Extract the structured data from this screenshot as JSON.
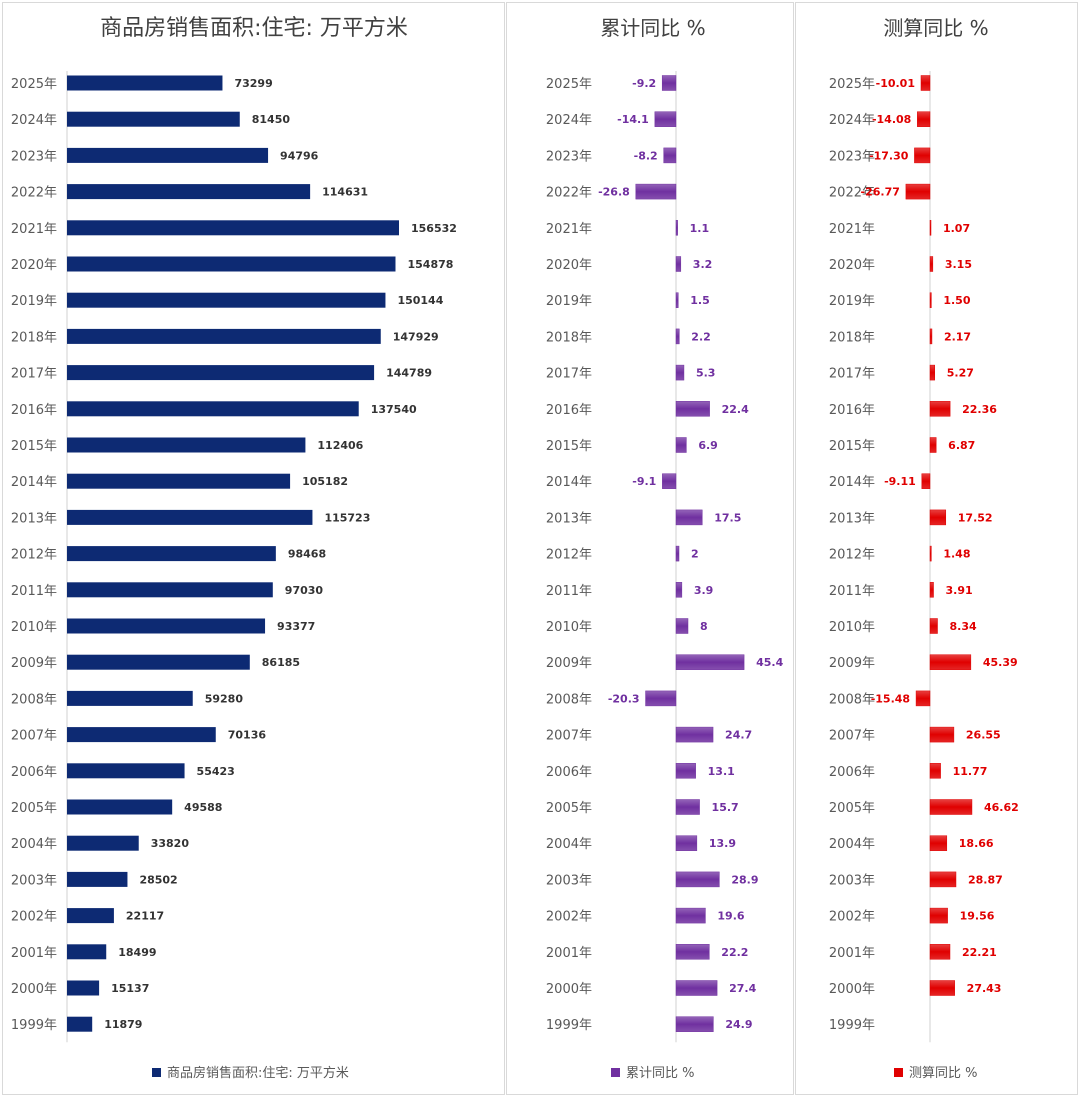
{
  "chart_data": [
    {
      "type": "bar",
      "orientation": "horizontal",
      "title": "商品房销售面积:住宅: 万平方米",
      "categories": [
        "2025年",
        "2024年",
        "2023年",
        "2022年",
        "2021年",
        "2020年",
        "2019年",
        "2018年",
        "2017年",
        "2016年",
        "2015年",
        "2014年",
        "2013年",
        "2012年",
        "2011年",
        "2010年",
        "2009年",
        "2008年",
        "2007年",
        "2006年",
        "2005年",
        "2004年",
        "2003年",
        "2002年",
        "2001年",
        "2000年",
        "1999年"
      ],
      "series": [
        {
          "name": "商品房销售面积:住宅: 万平方米",
          "values": [
            73299,
            81450,
            94796,
            114631,
            156532,
            154878,
            150144,
            147929,
            144789,
            137540,
            112406,
            105182,
            115723,
            98468,
            97030,
            93377,
            86185,
            59280,
            70136,
            55423,
            49588,
            33820,
            28502,
            22117,
            18499,
            15137,
            11879
          ],
          "labels": [
            "73299",
            "81450",
            "94796",
            "114631",
            "156532",
            "154878",
            "150144",
            "147929",
            "144789",
            "137540",
            "112406",
            "105182",
            "115723",
            "98468",
            "97030",
            "93377",
            "86185",
            "59280",
            "70136",
            "55423",
            "49588",
            "33820",
            "28502",
            "22117",
            "18499",
            "15137",
            "11879"
          ]
        }
      ],
      "legend_position": "bottom",
      "grid": false,
      "colors": {
        "bar": "#0d2a73",
        "label": "#333333"
      }
    },
    {
      "type": "bar",
      "orientation": "horizontal",
      "title": "累计同比 %",
      "categories": [
        "2025年",
        "2024年",
        "2023年",
        "2022年",
        "2021年",
        "2020年",
        "2019年",
        "2018年",
        "2017年",
        "2016年",
        "2015年",
        "2014年",
        "2013年",
        "2012年",
        "2011年",
        "2010年",
        "2009年",
        "2008年",
        "2007年",
        "2006年",
        "2005年",
        "2004年",
        "2003年",
        "2002年",
        "2001年",
        "2000年",
        "1999年"
      ],
      "series": [
        {
          "name": "累计同比 %",
          "values": [
            -9.2,
            -14.1,
            -8.2,
            -26.8,
            1.1,
            3.2,
            1.5,
            2.2,
            5.3,
            22.4,
            6.9,
            -9.1,
            17.5,
            2,
            3.9,
            8,
            45.4,
            -20.3,
            24.7,
            13.1,
            15.7,
            13.9,
            28.9,
            19.6,
            22.2,
            27.4,
            24.9
          ],
          "labels": [
            "-9.2",
            "-14.1",
            "-8.2",
            "-26.8",
            "1.1",
            "3.2",
            "1.5",
            "2.2",
            "5.3",
            "22.4",
            "6.9",
            "-9.1",
            "17.5",
            "2",
            "3.9",
            "8",
            "45.4",
            "-20.3",
            "24.7",
            "13.1",
            "15.7",
            "13.9",
            "28.9",
            "19.6",
            "22.2",
            "27.4",
            "24.9"
          ]
        }
      ],
      "legend_position": "bottom",
      "grid": false,
      "colors": {
        "bar": "#7030a0",
        "label": "#7030a0"
      }
    },
    {
      "type": "bar",
      "orientation": "horizontal",
      "title": "测算同比 %",
      "categories": [
        "2025年",
        "2024年",
        "2023年",
        "2022年",
        "2021年",
        "2020年",
        "2019年",
        "2018年",
        "2017年",
        "2016年",
        "2015年",
        "2014年",
        "2013年",
        "2012年",
        "2011年",
        "2010年",
        "2009年",
        "2008年",
        "2007年",
        "2006年",
        "2005年",
        "2004年",
        "2003年",
        "2002年",
        "2001年",
        "2000年",
        "1999年"
      ],
      "series": [
        {
          "name": "测算同比 %",
          "values": [
            -10.01,
            -14.08,
            -17.3,
            -26.77,
            1.07,
            3.15,
            1.5,
            2.17,
            5.27,
            22.36,
            6.87,
            -9.11,
            17.52,
            1.48,
            3.91,
            8.34,
            45.39,
            -15.48,
            26.55,
            11.77,
            46.62,
            18.66,
            28.87,
            19.56,
            22.21,
            27.43,
            null
          ],
          "labels": [
            "-10.01",
            "-14.08",
            "-17.30",
            "-26.77",
            "1.07",
            "3.15",
            "1.50",
            "2.17",
            "5.27",
            "22.36",
            "6.87",
            "-9.11",
            "17.52",
            "1.48",
            "3.91",
            "8.34",
            "45.39",
            "-15.48",
            "26.55",
            "11.77",
            "46.62",
            "18.66",
            "28.87",
            "19.56",
            "22.21",
            "27.43",
            ""
          ]
        }
      ],
      "legend_position": "bottom",
      "grid": false,
      "colors": {
        "bar": "#e00000",
        "label": "#e00000"
      }
    }
  ]
}
